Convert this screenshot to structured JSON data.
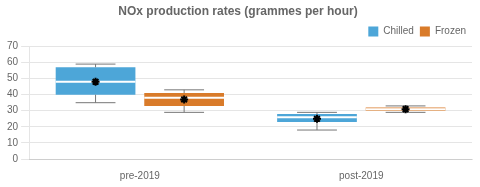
{
  "chart_data": {
    "type": "box",
    "title": "NOx production rates (grammes per hour)",
    "categories": [
      "pre-2019",
      "post-2019"
    ],
    "series": [
      {
        "name": "Chilled",
        "color": "#4DA6D8",
        "values": [
          {
            "whislo": 35,
            "q1": 40,
            "med": 48,
            "mean": 48,
            "q3": 57,
            "whishi": 59,
            "fliers": []
          },
          {
            "whislo": 18,
            "q1": 23,
            "med": 26,
            "mean": 25,
            "q3": 28,
            "whishi": 29,
            "fliers": []
          }
        ]
      },
      {
        "name": "Frozen",
        "color": "#D97B2A",
        "values": [
          {
            "whislo": 29,
            "q1": 33,
            "med": 38,
            "mean": 37,
            "q3": 41,
            "whishi": 43,
            "fliers": []
          },
          {
            "whislo": 29,
            "q1": 30,
            "med": 31,
            "mean": 31,
            "q3": 32,
            "whishi": 33,
            "fliers": []
          }
        ]
      }
    ],
    "ylim": [
      0,
      70
    ],
    "yticks": [
      0,
      10,
      20,
      30,
      40,
      50,
      60,
      70
    ],
    "grid": true,
    "legend": "upper right"
  }
}
